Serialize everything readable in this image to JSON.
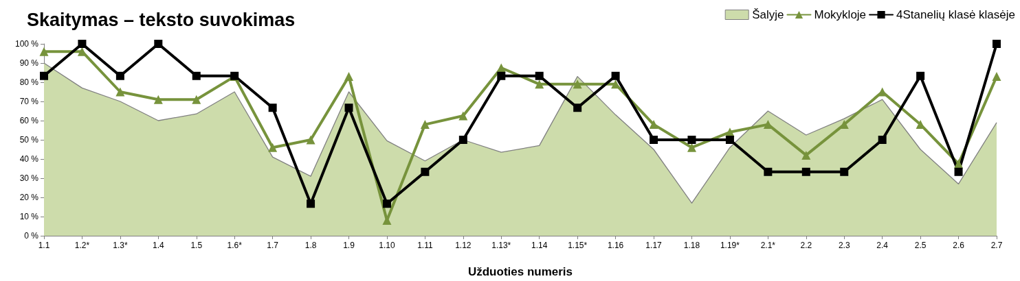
{
  "chart_data": {
    "type": "line",
    "title": "Skaitymas – teksto suvokimas",
    "xlabel": "Užduoties numeris",
    "categories": [
      "1.1",
      "1.2*",
      "1.3*",
      "1.4",
      "1.5",
      "1.6*",
      "1.7",
      "1.8",
      "1.9",
      "1.10",
      "1.11",
      "1.12",
      "1.13*",
      "1.14",
      "1.15*",
      "1.16",
      "1.17",
      "1.18",
      "1.19*",
      "2.1*",
      "2.2",
      "2.3",
      "2.4",
      "2.5",
      "2.6",
      "2.7"
    ],
    "series": [
      {
        "name": "Šalyje",
        "type": "area",
        "color": "#cddcab",
        "marker": "none",
        "values": [
          90,
          77,
          70,
          60,
          63.5,
          75,
          41,
          31,
          75,
          49.5,
          39,
          50,
          43.5,
          47,
          83,
          63,
          45,
          17,
          46,
          65,
          52.5,
          61,
          71,
          45,
          27,
          59
        ]
      },
      {
        "name": "Mokykloje",
        "type": "line",
        "color": "#77933c",
        "marker": "triangle",
        "values": [
          96,
          96,
          75,
          71,
          71,
          83,
          46,
          50,
          83,
          8,
          58,
          62.5,
          87.5,
          79,
          79,
          79,
          58,
          46,
          54,
          58,
          42,
          58,
          75,
          58,
          37.5,
          83
        ]
      },
      {
        "name": "4Stanelių klasė klasėje",
        "type": "line",
        "color": "#000000",
        "marker": "square",
        "values": [
          83.3,
          100,
          83.3,
          100,
          83.3,
          83.3,
          66.7,
          16.7,
          66.7,
          16.7,
          33.3,
          50,
          83.3,
          83.3,
          66.7,
          83.3,
          50,
          50,
          50,
          33.3,
          33.3,
          33.3,
          50,
          83.3,
          33.3,
          100
        ]
      }
    ],
    "ylim": [
      0,
      100
    ],
    "yticks": [
      {
        "value": 0,
        "label": "0 %"
      },
      {
        "value": 10,
        "label": "10 %"
      },
      {
        "value": 20,
        "label": "20 %"
      },
      {
        "value": 30,
        "label": "30 %"
      },
      {
        "value": 40,
        "label": "40 %"
      },
      {
        "value": 50,
        "label": "50 %"
      },
      {
        "value": 60,
        "label": "60 %"
      },
      {
        "value": 70,
        "label": "70 %"
      },
      {
        "value": 80,
        "label": "80 %"
      },
      {
        "value": 90,
        "label": "90 %"
      },
      {
        "value": 100,
        "label": "100 %"
      }
    ],
    "grid": false,
    "legend": "top right",
    "line_style": "solid"
  }
}
